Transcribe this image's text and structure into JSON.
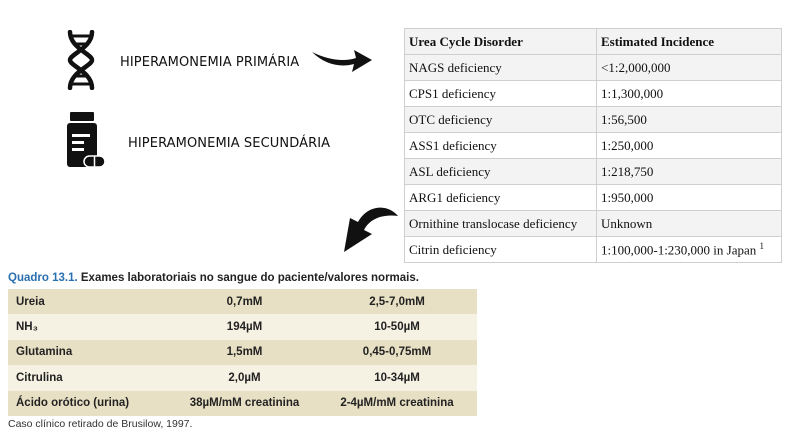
{
  "labels": {
    "primary": "HIPERAMONEMIA PRIMÁRIA",
    "secondary": "HIPERAMONEMIA SECUNDÁRIA"
  },
  "icons": {
    "primary": "dna-icon",
    "secondary": "medicine-bottle-icon",
    "arrow_right": "arrow-right-icon",
    "arrow_curve": "curved-arrow-down-left-icon"
  },
  "urea_table": {
    "headers": [
      "Urea Cycle Disorder",
      "Estimated Incidence"
    ],
    "rows": [
      [
        "NAGS deficiency",
        "<1:2,000,000"
      ],
      [
        "CPS1 deficiency",
        "1:1,300,000"
      ],
      [
        "OTC deficiency",
        "1:56,500"
      ],
      [
        "ASS1 deficiency",
        "1:250,000"
      ],
      [
        "ASL deficiency",
        "1:218,750"
      ],
      [
        "ARG1 deficiency",
        "1:950,000"
      ],
      [
        "Ornithine translocase deficiency",
        "Unknown"
      ],
      [
        "Citrin deficiency",
        "1:100,000-1:230,000 in Japan"
      ]
    ],
    "last_superscript": "1"
  },
  "quadro": {
    "number": "Quadro 13.1.",
    "title": "Exames laboratoriais no sangue do paciente/valores normais.",
    "rows": [
      [
        "Ureia",
        "0,7mM",
        "2,5-7,0mM"
      ],
      [
        "NH₃",
        "194µM",
        "10-50µM"
      ],
      [
        "Glutamina",
        "1,5mM",
        "0,45-0,75mM"
      ],
      [
        "Citrulina",
        "2,0µM",
        "10-34µM"
      ],
      [
        "Ácido orótico (urina)",
        "38µM/mM creatinina",
        "2-4µM/mM creatinina"
      ]
    ],
    "caption": "Caso clínico retirado de Brusilow, 1997."
  },
  "colors": {
    "quadro_blue": "#2a6fb0",
    "quadro_row_dark": "#e8e0c4",
    "quadro_row_light": "#f6f2e3"
  }
}
